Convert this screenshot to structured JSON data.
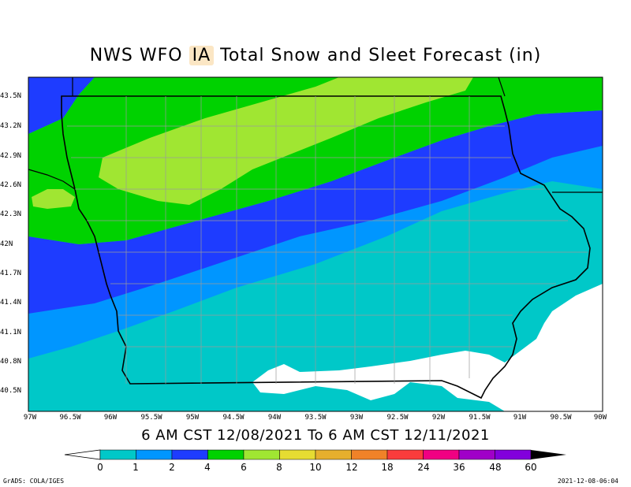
{
  "title": {
    "prefix": "NWS WFO ",
    "office": "IA",
    "suffix": " Total Snow and Sleet Forecast (in)"
  },
  "subtitle": "6 AM CST 12/08/2021 To 6 AM CST 12/11/2021",
  "axes": {
    "lat_labels": [
      "43.5N",
      "43.2N",
      "42.9N",
      "42.6N",
      "42.3N",
      "42N",
      "41.7N",
      "41.4N",
      "41.1N",
      "40.8N",
      "40.5N"
    ],
    "lon_labels": [
      "97W",
      "96.5W",
      "96W",
      "95.5W",
      "95W",
      "94.5W",
      "94W",
      "93.5W",
      "93W",
      "92.5W",
      "92W",
      "91.5W",
      "91W",
      "90.5W",
      "90W"
    ]
  },
  "colorbar": {
    "labels": [
      "0",
      "1",
      "2",
      "4",
      "6",
      "8",
      "10",
      "12",
      "18",
      "24",
      "36",
      "48",
      "60"
    ],
    "colors": [
      "#00c8c8",
      "#0096ff",
      "#1e3cff",
      "#00d200",
      "#a0e632",
      "#e6dc32",
      "#e6af2d",
      "#f08228",
      "#fa3c3c",
      "#f00082",
      "#a000c8",
      "#8200dc",
      "#000000"
    ]
  },
  "footer": {
    "left": "GrADS: COLA/IGES",
    "right": "2021-12-08-06:04"
  }
}
